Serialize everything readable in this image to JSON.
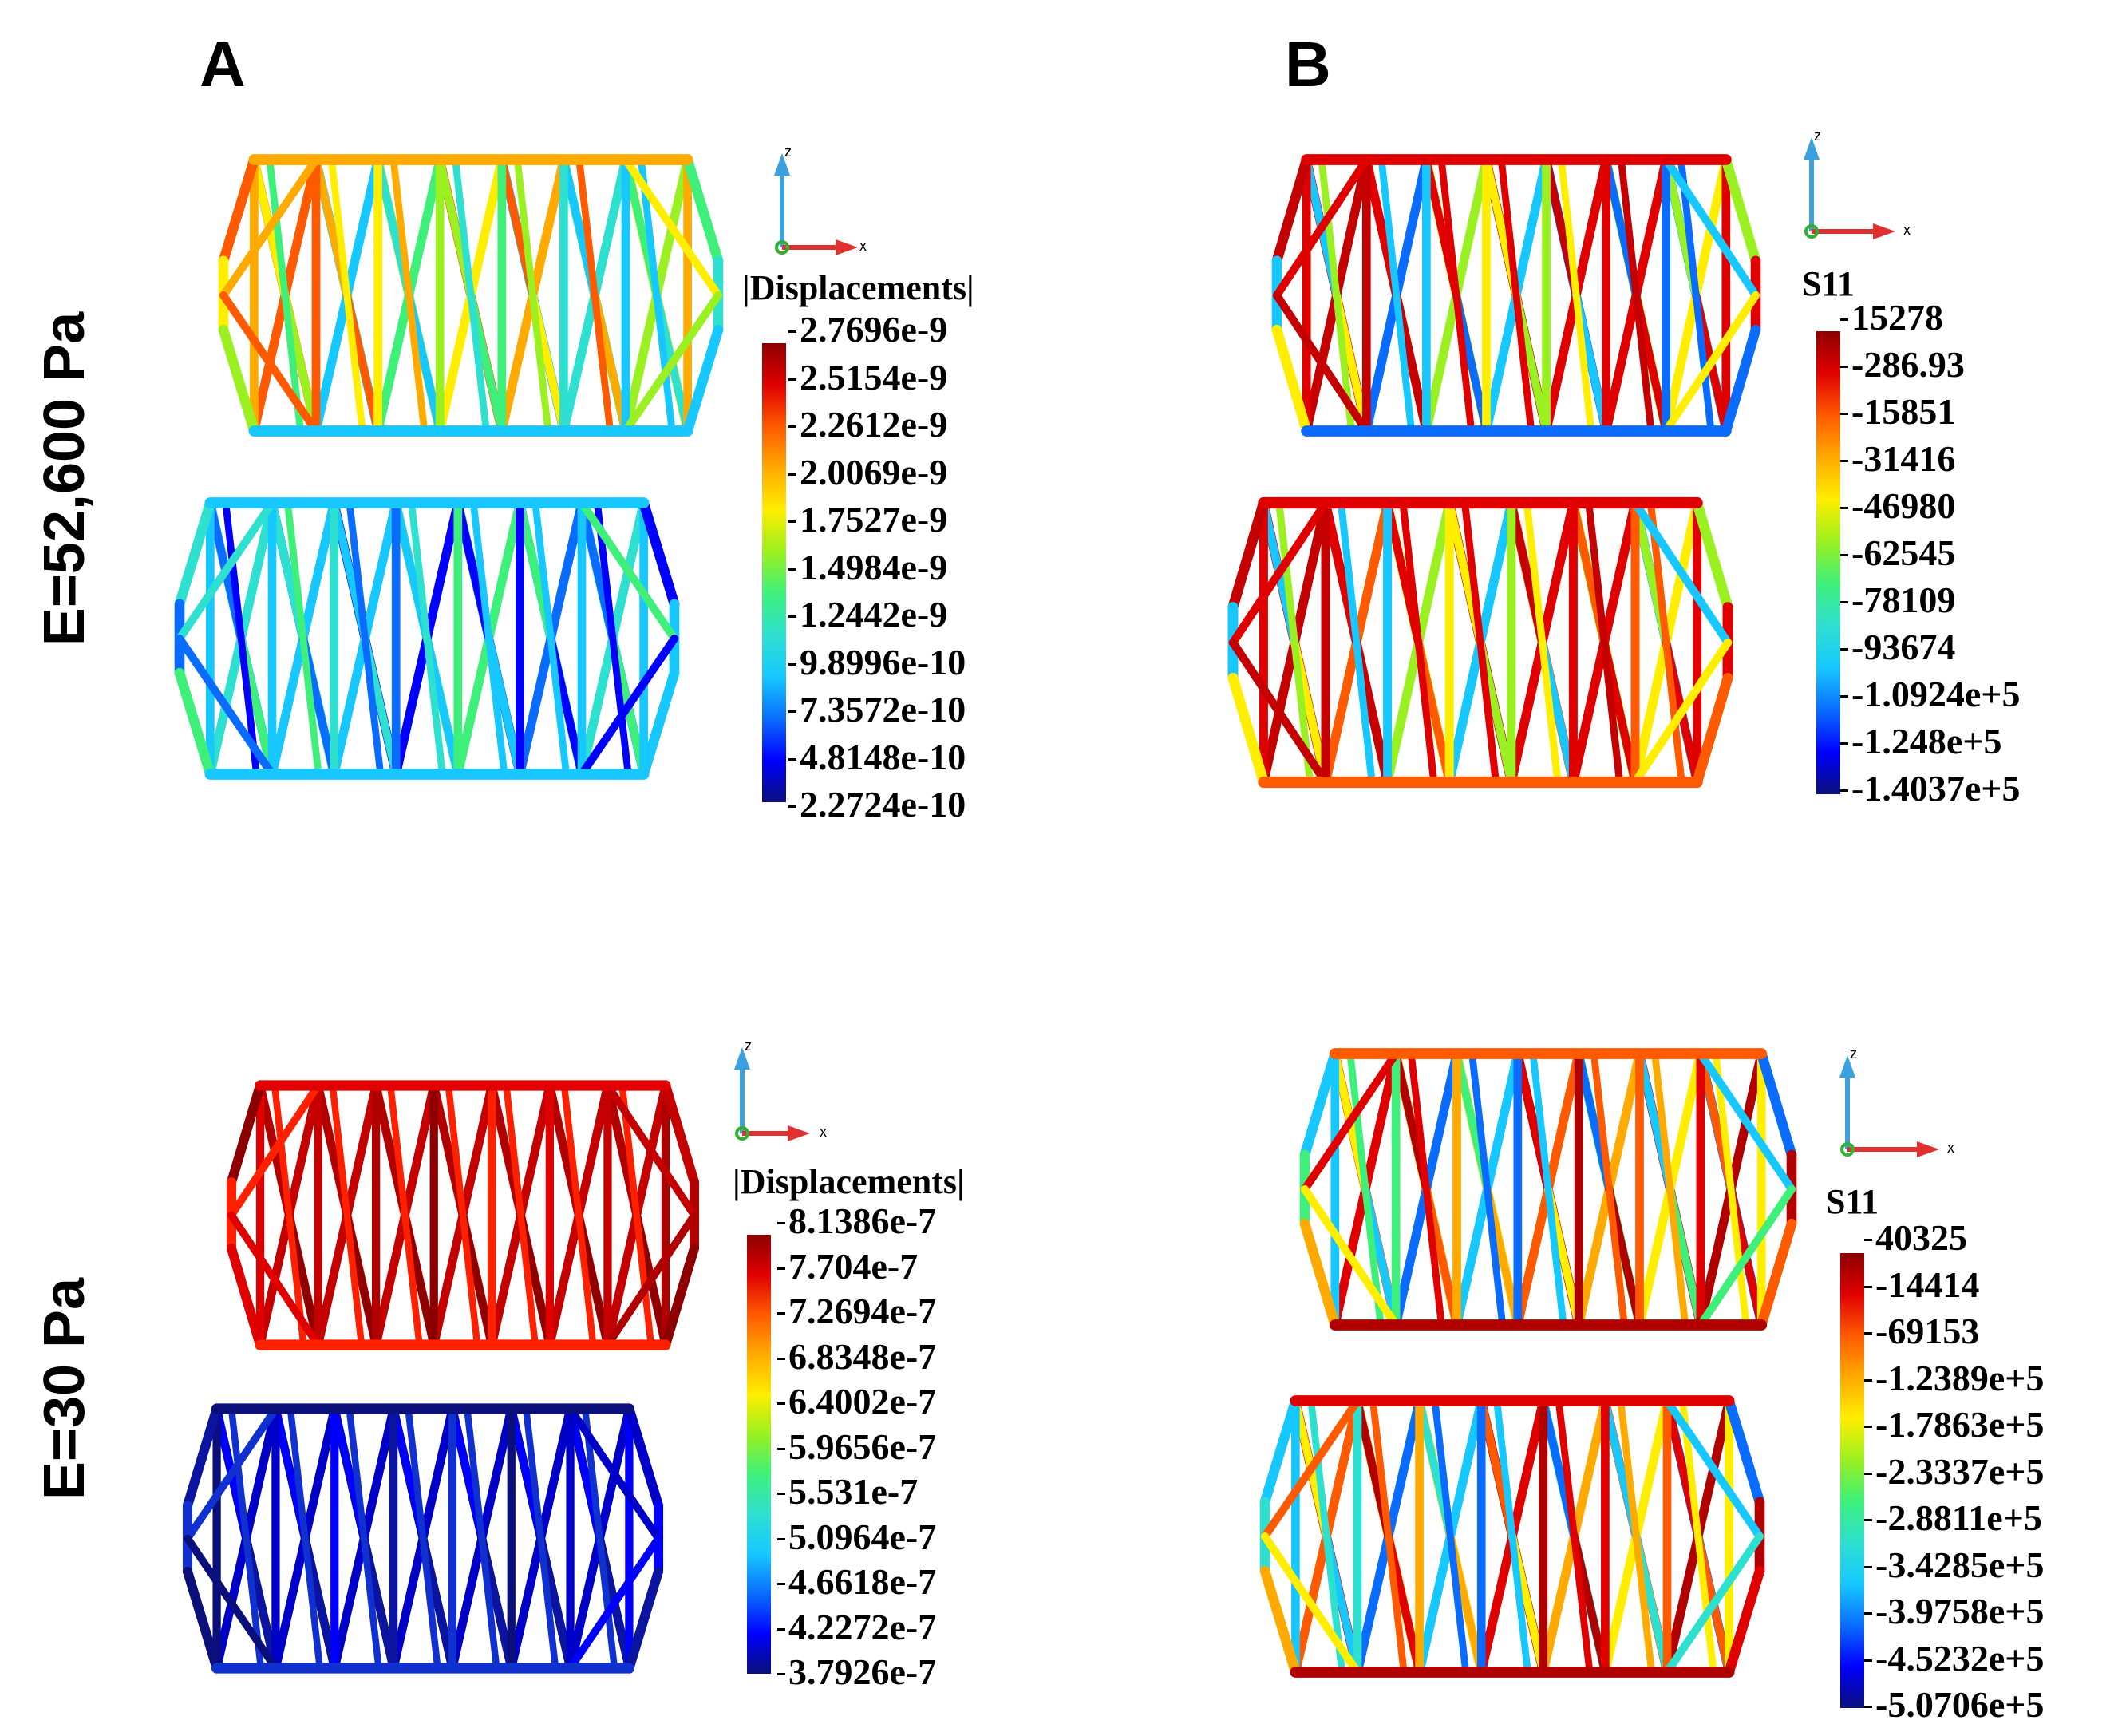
{
  "panels": {
    "a_label": "A",
    "b_label": "B"
  },
  "rows": {
    "top_label": "E=52,600 Pa",
    "bottom_label": "E=30  Pa"
  },
  "axes": {
    "z": "z",
    "x": "x"
  },
  "colormap": [
    "#0a0f7a",
    "#0000ff",
    "#0a6cff",
    "#16c8ff",
    "#2ee0d0",
    "#3ef07a",
    "#9af020",
    "#ffee00",
    "#ffaa00",
    "#ff5a00",
    "#e00000",
    "#8e0000"
  ],
  "legends": {
    "disp_top": {
      "title": "|Displacements|",
      "labels": [
        "2.7696e-9",
        "2.5154e-9",
        "2.2612e-9",
        "2.0069e-9",
        "1.7527e-9",
        "1.4984e-9",
        "1.2442e-9",
        "9.8996e-10",
        "7.3572e-10",
        "4.8148e-10",
        "2.2724e-10"
      ]
    },
    "s11_top": {
      "title": "S11",
      "labels": [
        "15278",
        "-286.93",
        "-15851",
        "-31416",
        "-46980",
        "-62545",
        "-78109",
        "-93674",
        "-1.0924e+5",
        "-1.248e+5",
        "-1.4037e+5"
      ]
    },
    "disp_bottom": {
      "title": "|Displacements|",
      "labels": [
        "8.1386e-7",
        "7.704e-7",
        "7.2694e-7",
        "6.8348e-7",
        "6.4002e-7",
        "5.9656e-7",
        "5.531e-7",
        "5.0964e-7",
        "4.6618e-7",
        "4.2272e-7",
        "3.7926e-7"
      ]
    },
    "s11_bottom": {
      "title": "S11",
      "labels": [
        "40325",
        "-14414",
        "-69153",
        "-1.2389e+5",
        "-1.7863e+5",
        "-2.3337e+5",
        "-2.8811e+5",
        "-3.4285e+5",
        "-3.9758e+5",
        "-4.5232e+5",
        "-5.0706e+5"
      ]
    }
  },
  "lattices": [
    {
      "name": "lattice-a-top-front",
      "palette": [
        "#ffaa00",
        "#ff5a00",
        "#ffee00",
        "#9af020",
        "#3ef07a",
        "#2ee0d0",
        "#16c8ff"
      ]
    },
    {
      "name": "lattice-a-top-back",
      "palette": [
        "#16c8ff",
        "#2ee0d0",
        "#0a6cff",
        "#3ef07a",
        "#0000ff",
        "#16c8ff"
      ]
    },
    {
      "name": "lattice-b-top-front",
      "palette": [
        "#e00000",
        "#c40000",
        "#16c8ff",
        "#ffee00",
        "#9af020",
        "#e00000",
        "#0a6cff"
      ]
    },
    {
      "name": "lattice-b-top-back",
      "palette": [
        "#e00000",
        "#c40000",
        "#16c8ff",
        "#ffee00",
        "#9af020",
        "#e00000",
        "#ff5a00"
      ]
    },
    {
      "name": "lattice-a-bottom-front",
      "palette": [
        "#e00000",
        "#c40000",
        "#b00000",
        "#8e0000",
        "#ff2000"
      ]
    },
    {
      "name": "lattice-a-bottom-back",
      "palette": [
        "#0a0f7a",
        "#0000c8",
        "#0000ff",
        "#0a14a0",
        "#1030d0"
      ]
    },
    {
      "name": "lattice-b-bottom-front",
      "palette": [
        "#ff5a00",
        "#e00000",
        "#ffee00",
        "#16c8ff",
        "#3ef07a",
        "#ffaa00",
        "#0a6cff",
        "#b00000"
      ]
    },
    {
      "name": "lattice-b-bottom-back",
      "palette": [
        "#e00000",
        "#ff5a00",
        "#ffee00",
        "#16c8ff",
        "#2ee0d0",
        "#ffaa00",
        "#0a6cff",
        "#b00000"
      ]
    }
  ]
}
